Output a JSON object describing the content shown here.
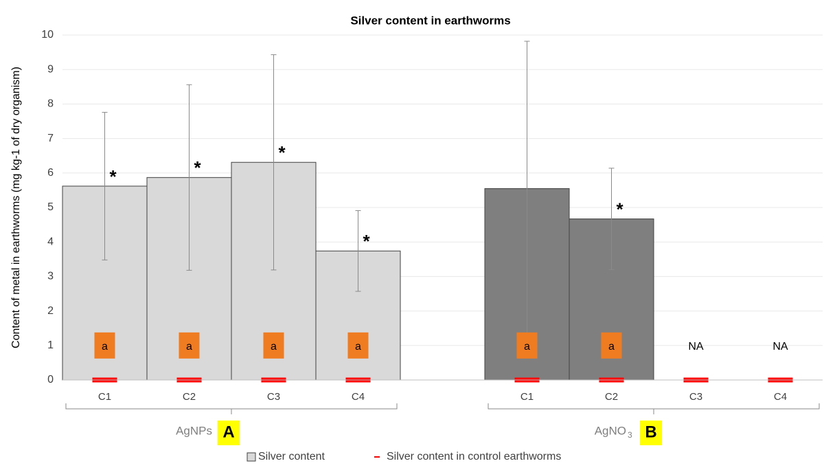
{
  "chart_data": {
    "type": "bar",
    "title": "Silver content in earthworms",
    "ylabel": "Content of metal in earthworms (mg kg-1 of dry organism)",
    "ylim": [
      0,
      10
    ],
    "yticks": [
      0,
      1,
      2,
      3,
      4,
      5,
      6,
      7,
      8,
      9,
      10
    ],
    "grid": true,
    "groups": [
      {
        "name": "AgNPs",
        "tag": "A",
        "color": "#d9d9d9",
        "categories": [
          "C1",
          "C2",
          "C3",
          "C4"
        ],
        "values": [
          5.62,
          5.87,
          6.31,
          3.74
        ],
        "errors": [
          2.14,
          2.69,
          3.12,
          1.17
        ],
        "control": [
          0,
          0,
          0,
          0
        ],
        "stars": [
          "*",
          "*",
          "*",
          "*"
        ],
        "labels": [
          "a",
          "a",
          "a",
          "a"
        ],
        "label_boxes": [
          true,
          true,
          true,
          true
        ]
      },
      {
        "name": "AgNO",
        "subscript": "3",
        "tag": "B",
        "color": "#7f7f7f",
        "categories": [
          "C1",
          "C2",
          "C3",
          "C4"
        ],
        "values": [
          5.55,
          4.67,
          null,
          null
        ],
        "errors": [
          4.27,
          1.47,
          null,
          null
        ],
        "control": [
          0,
          0,
          0,
          0
        ],
        "stars": [
          null,
          "*",
          null,
          null
        ],
        "labels": [
          "a",
          "a",
          "NA",
          "NA"
        ],
        "label_boxes": [
          true,
          true,
          false,
          false
        ]
      }
    ],
    "legend": [
      {
        "name": "Silver content",
        "color": "#d9d9d9"
      },
      {
        "name": "Silver content in control earthworms",
        "color": "#ff0000"
      }
    ]
  }
}
